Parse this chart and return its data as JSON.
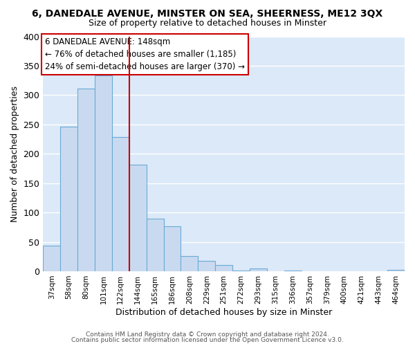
{
  "title": "6, DANEDALE AVENUE, MINSTER ON SEA, SHEERNESS, ME12 3QX",
  "subtitle": "Size of property relative to detached houses in Minster",
  "xlabel": "Distribution of detached houses by size in Minster",
  "ylabel": "Number of detached properties",
  "bar_labels": [
    "37sqm",
    "58sqm",
    "80sqm",
    "101sqm",
    "122sqm",
    "144sqm",
    "165sqm",
    "186sqm",
    "208sqm",
    "229sqm",
    "251sqm",
    "272sqm",
    "293sqm",
    "315sqm",
    "336sqm",
    "357sqm",
    "379sqm",
    "400sqm",
    "421sqm",
    "443sqm",
    "464sqm"
  ],
  "bar_values": [
    43,
    246,
    311,
    334,
    228,
    181,
    90,
    76,
    26,
    18,
    10,
    1,
    5,
    0,
    1,
    0,
    0,
    0,
    0,
    0,
    2
  ],
  "bar_color": "#c9daf0",
  "bar_edge_color": "#6aaad4",
  "vline_color": "#cc0000",
  "annotation_title": "6 DANEDALE AVENUE: 148sqm",
  "annotation_line1": "← 76% of detached houses are smaller (1,185)",
  "annotation_line2": "24% of semi-detached houses are larger (370) →",
  "ylim": [
    0,
    400
  ],
  "yticks": [
    0,
    50,
    100,
    150,
    200,
    250,
    300,
    350,
    400
  ],
  "footer1": "Contains HM Land Registry data © Crown copyright and database right 2024.",
  "footer2": "Contains public sector information licensed under the Open Government Licence v3.0.",
  "plot_bg_color": "#dce9f8",
  "fig_bg_color": "#ffffff",
  "grid_color": "#ffffff"
}
